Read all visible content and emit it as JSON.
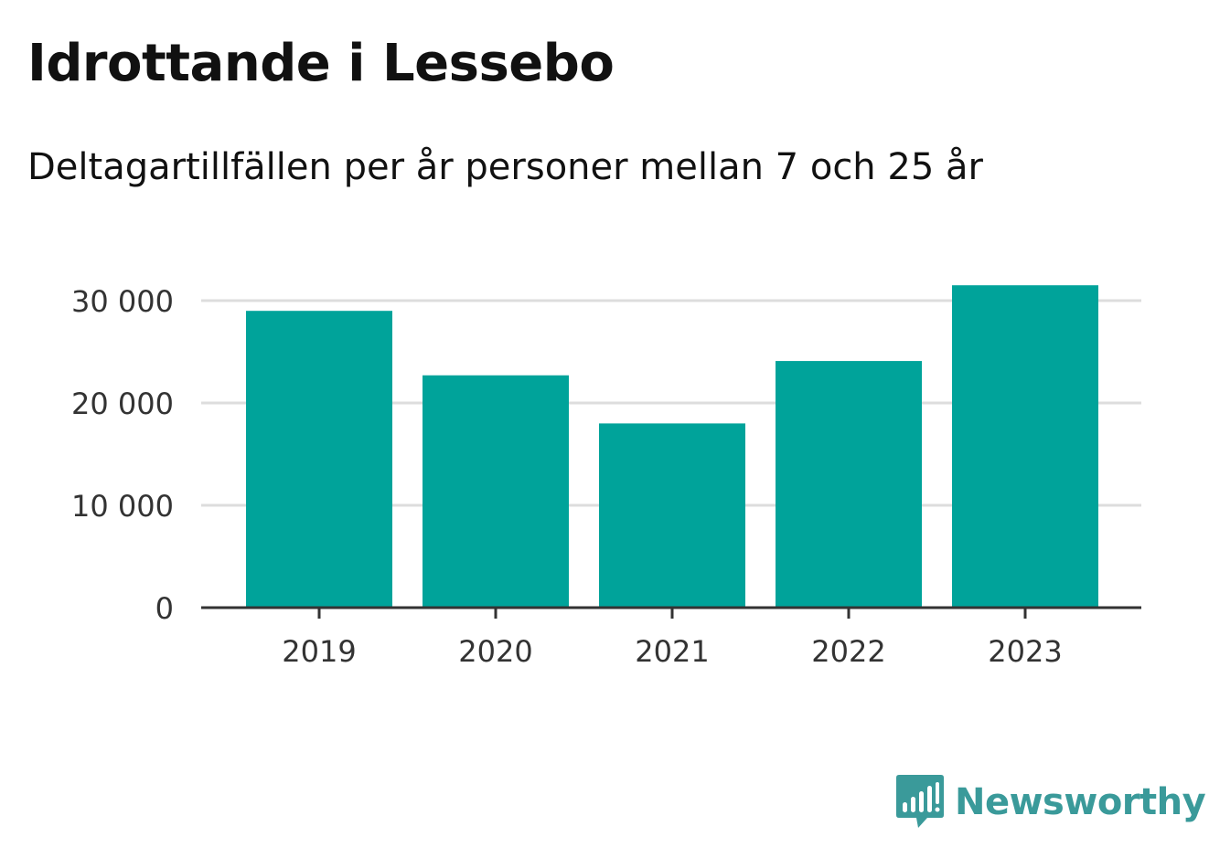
{
  "title": "Idrottande i Lessebo",
  "subtitle": "Deltagartillfällen per år personer mellan 7 och 25 år",
  "brand": {
    "name": "Newsworthy",
    "icon": "newsworthy-logo-icon",
    "color": "#3a9a9a"
  },
  "chart_data": {
    "type": "bar",
    "title": "",
    "xlabel": "",
    "ylabel": "",
    "categories": [
      "2019",
      "2020",
      "2021",
      "2022",
      "2023"
    ],
    "values": [
      29000,
      22700,
      18000,
      24100,
      31500
    ],
    "ylim": [
      0,
      30000
    ],
    "yticks": [
      0,
      10000,
      20000,
      30000
    ],
    "ytick_labels": [
      "0",
      "10 000",
      "20 000",
      "30 000"
    ],
    "grid": true,
    "bar_color": "#00a39a",
    "grid_color": "#dddddd",
    "axis_color": "#333333"
  }
}
